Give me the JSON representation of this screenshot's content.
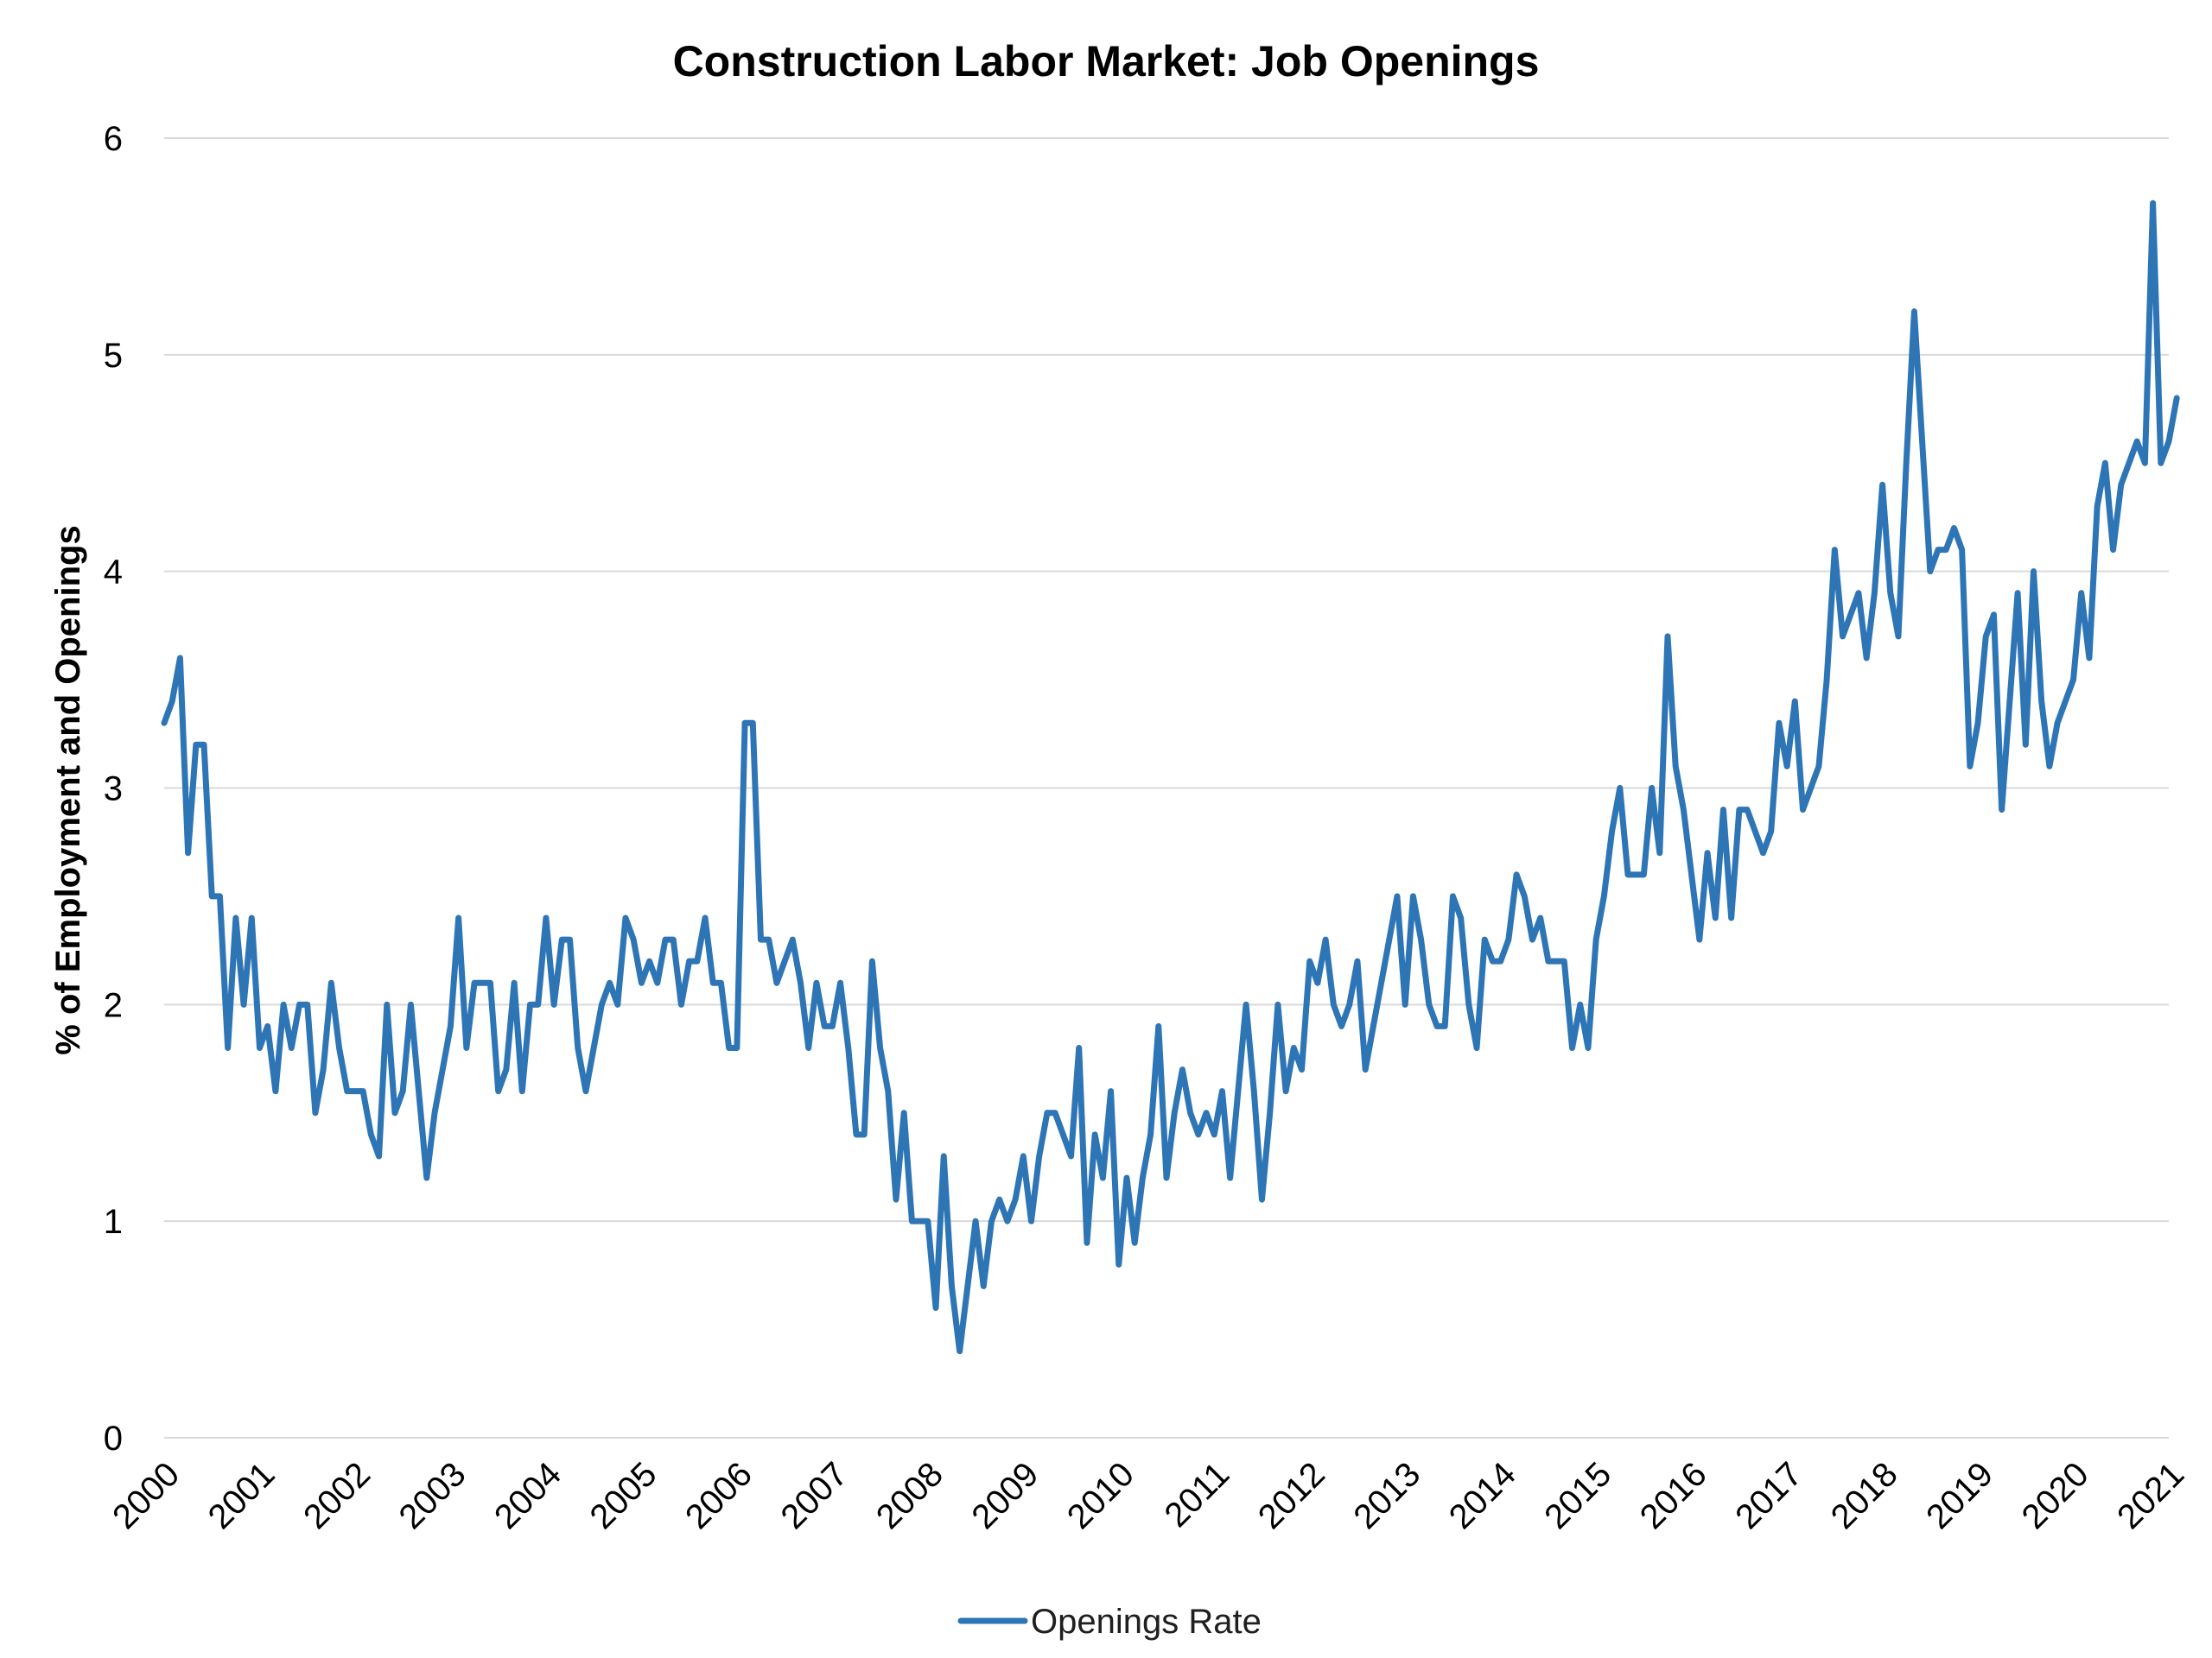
{
  "chart_data": {
    "type": "line",
    "title": "Construction Labor Market: Job Openings",
    "xlabel": "",
    "ylabel": "% of Employment and Openings",
    "x_start": "2000-01",
    "x_step": "month",
    "x_ticks": [
      "2000",
      "2001",
      "2002",
      "2003",
      "2004",
      "2005",
      "2006",
      "2007",
      "2008",
      "2009",
      "2010",
      "2011",
      "2012",
      "2013",
      "2014",
      "2015",
      "2016",
      "2017",
      "2018",
      "2019",
      "2020",
      "2021"
    ],
    "ylim": [
      0,
      6
    ],
    "y_ticks": [
      0,
      1,
      2,
      3,
      4,
      5,
      6
    ],
    "y_tick_labels": [
      "0",
      "1",
      "2",
      "3",
      "4",
      "5",
      "6"
    ],
    "grid": true,
    "legend_position": "bottom",
    "series": [
      {
        "name": "Openings Rate",
        "color": "#2e75b6",
        "values": [
          3.3,
          3.4,
          3.6,
          2.7,
          3.2,
          3.2,
          2.5,
          2.5,
          1.8,
          2.4,
          2.0,
          2.4,
          1.8,
          1.9,
          1.6,
          2.0,
          1.8,
          2.0,
          2.0,
          1.5,
          1.7,
          2.1,
          1.8,
          1.6,
          1.6,
          1.6,
          1.4,
          1.3,
          2.0,
          1.5,
          1.6,
          2.0,
          1.6,
          1.2,
          1.5,
          1.7,
          1.9,
          2.4,
          1.8,
          2.1,
          2.1,
          2.1,
          1.6,
          1.7,
          2.1,
          1.6,
          2.0,
          2.0,
          2.4,
          2.0,
          2.3,
          2.3,
          1.8,
          1.6,
          1.8,
          2.0,
          2.1,
          2.0,
          2.4,
          2.3,
          2.1,
          2.2,
          2.1,
          2.3,
          2.3,
          2.0,
          2.2,
          2.2,
          2.4,
          2.1,
          2.1,
          1.8,
          1.8,
          3.3,
          3.3,
          2.3,
          2.3,
          2.1,
          2.2,
          2.3,
          2.1,
          1.8,
          2.1,
          1.9,
          1.9,
          2.1,
          1.8,
          1.4,
          1.4,
          2.2,
          1.8,
          1.6,
          1.1,
          1.5,
          1.0,
          1.0,
          1.0,
          0.6,
          1.3,
          0.7,
          0.4,
          0.7,
          1.0,
          0.7,
          1.0,
          1.1,
          1.0,
          1.1,
          1.3,
          1.0,
          1.3,
          1.5,
          1.5,
          1.4,
          1.3,
          1.8,
          0.9,
          1.4,
          1.2,
          1.6,
          0.8,
          1.2,
          0.9,
          1.2,
          1.4,
          1.9,
          1.2,
          1.5,
          1.7,
          1.5,
          1.4,
          1.5,
          1.4,
          1.6,
          1.2,
          1.6,
          2.0,
          1.6,
          1.1,
          1.5,
          2.0,
          1.6,
          1.8,
          1.7,
          2.2,
          2.1,
          2.3,
          2.0,
          1.9,
          2.0,
          2.2,
          1.7,
          1.9,
          2.1,
          2.3,
          2.5,
          2.0,
          2.5,
          2.3,
          2.0,
          1.9,
          1.9,
          2.5,
          2.4,
          2.0,
          1.8,
          2.3,
          2.2,
          2.2,
          2.3,
          2.6,
          2.5,
          2.3,
          2.4,
          2.2,
          2.2,
          2.2,
          1.8,
          2.0,
          1.8,
          2.3,
          2.5,
          2.8,
          3.0,
          2.6,
          2.6,
          2.6,
          3.0,
          2.7,
          3.7,
          3.1,
          2.9,
          2.6,
          2.3,
          2.7,
          2.4,
          2.9,
          2.4,
          2.9,
          2.9,
          2.8,
          2.7,
          2.8,
          3.3,
          3.1,
          3.4,
          2.9,
          3.0,
          3.1,
          3.5,
          4.1,
          3.7,
          3.8,
          3.9,
          3.6,
          3.9,
          4.4,
          3.9,
          3.7,
          4.5,
          5.2,
          4.6,
          4.0,
          4.1,
          4.1,
          4.2,
          4.1,
          3.1,
          3.3,
          3.7,
          3.8,
          2.9,
          3.4,
          3.9,
          3.2,
          4.0,
          3.4,
          3.1,
          3.3,
          3.4,
          3.5,
          3.9,
          3.6,
          4.3,
          4.5,
          4.1,
          4.4,
          4.5,
          4.6,
          4.5,
          5.7,
          4.5,
          4.6,
          4.8
        ]
      }
    ]
  }
}
